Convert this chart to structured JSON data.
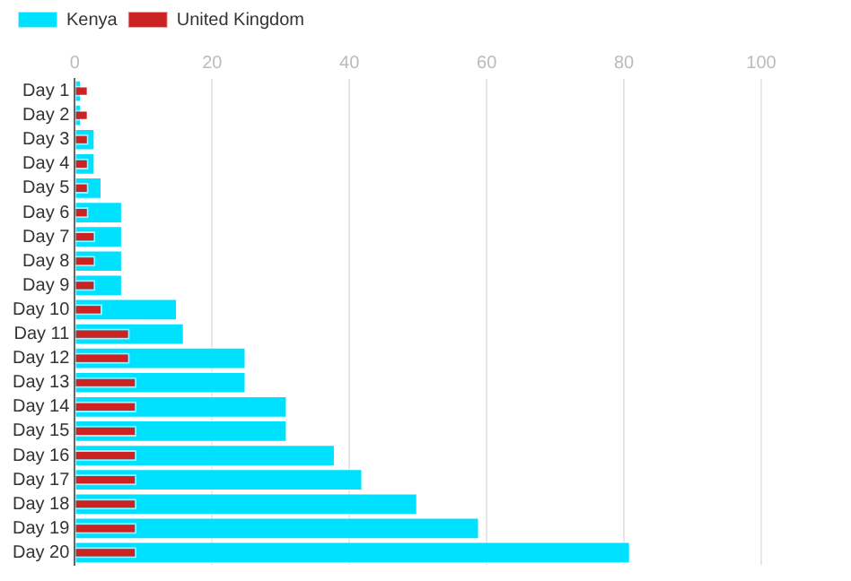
{
  "chart_data": {
    "type": "bar",
    "orientation": "horizontal",
    "categories": [
      "Day 1",
      "Day 2",
      "Day 3",
      "Day 4",
      "Day 5",
      "Day 6",
      "Day 7",
      "Day 8",
      "Day 9",
      "Day 10",
      "Day 11",
      "Day 12",
      "Day 13",
      "Day 14",
      "Day 15",
      "Day 16",
      "Day 17",
      "Day 18",
      "Day 19",
      "Day 20"
    ],
    "series": [
      {
        "name": "Kenya",
        "color": "#00e0ff",
        "values": [
          1,
          1,
          3,
          3,
          4,
          7,
          7,
          7,
          7,
          15,
          16,
          25,
          25,
          31,
          31,
          38,
          42,
          50,
          59,
          81
        ]
      },
      {
        "name": "United Kingdom",
        "color": "#cc2222",
        "values": [
          2,
          2,
          2,
          2,
          2,
          2,
          3,
          3,
          3,
          4,
          8,
          8,
          9,
          9,
          9,
          9,
          9,
          9,
          9,
          9
        ]
      }
    ],
    "xlim": [
      0,
      100
    ],
    "xticks": [
      0,
      20,
      40,
      60,
      80,
      100
    ],
    "grid": "x",
    "legend": "top left"
  }
}
